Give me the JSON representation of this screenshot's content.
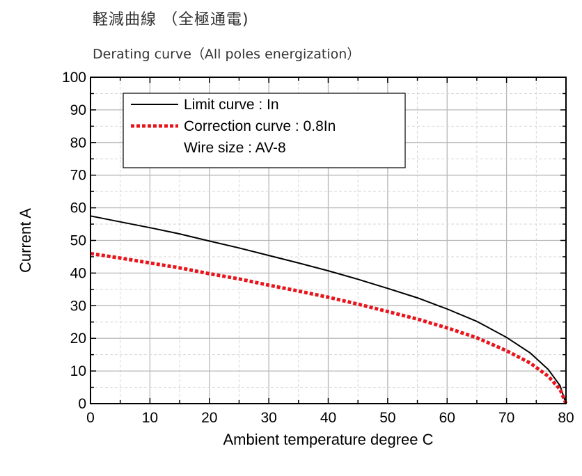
{
  "title": "軽減曲線 （全極通電)",
  "subtitle": "Derating curve（All poles energization）",
  "chart_data": {
    "type": "line",
    "xlabel": "Ambient temperature  degree C",
    "ylabel": "Current  A",
    "xlim": [
      0,
      80
    ],
    "ylim": [
      0,
      100
    ],
    "xticks": [
      0,
      10,
      20,
      30,
      40,
      50,
      60,
      70,
      80
    ],
    "yticks": [
      0,
      10,
      20,
      30,
      40,
      50,
      60,
      70,
      80,
      90,
      100
    ],
    "grid": true,
    "legend_position": "top-left",
    "legend_note": "Wire size : AV-8",
    "series": [
      {
        "name": "Limit curve : In",
        "color": "#000000",
        "style": "solid",
        "x": [
          0,
          5,
          10,
          15,
          20,
          25,
          30,
          35,
          40,
          45,
          50,
          55,
          60,
          65,
          70,
          74,
          77,
          79,
          80
        ],
        "y": [
          57.5,
          55.7,
          53.9,
          52.0,
          49.8,
          47.7,
          45.4,
          43.1,
          40.7,
          38.1,
          35.3,
          32.4,
          29.0,
          25.2,
          20.3,
          15.5,
          10.5,
          5.5,
          0
        ]
      },
      {
        "name": "Correction curve : 0.8In",
        "color": "#e8141b",
        "style": "dotted",
        "x": [
          0,
          5,
          10,
          15,
          20,
          25,
          30,
          35,
          40,
          45,
          50,
          55,
          60,
          65,
          70,
          74,
          77,
          79,
          80
        ],
        "y": [
          46.0,
          44.6,
          43.1,
          41.6,
          39.8,
          38.2,
          36.3,
          34.5,
          32.6,
          30.5,
          28.2,
          25.9,
          23.2,
          20.2,
          16.2,
          12.4,
          8.4,
          4.4,
          0
        ]
      }
    ]
  }
}
